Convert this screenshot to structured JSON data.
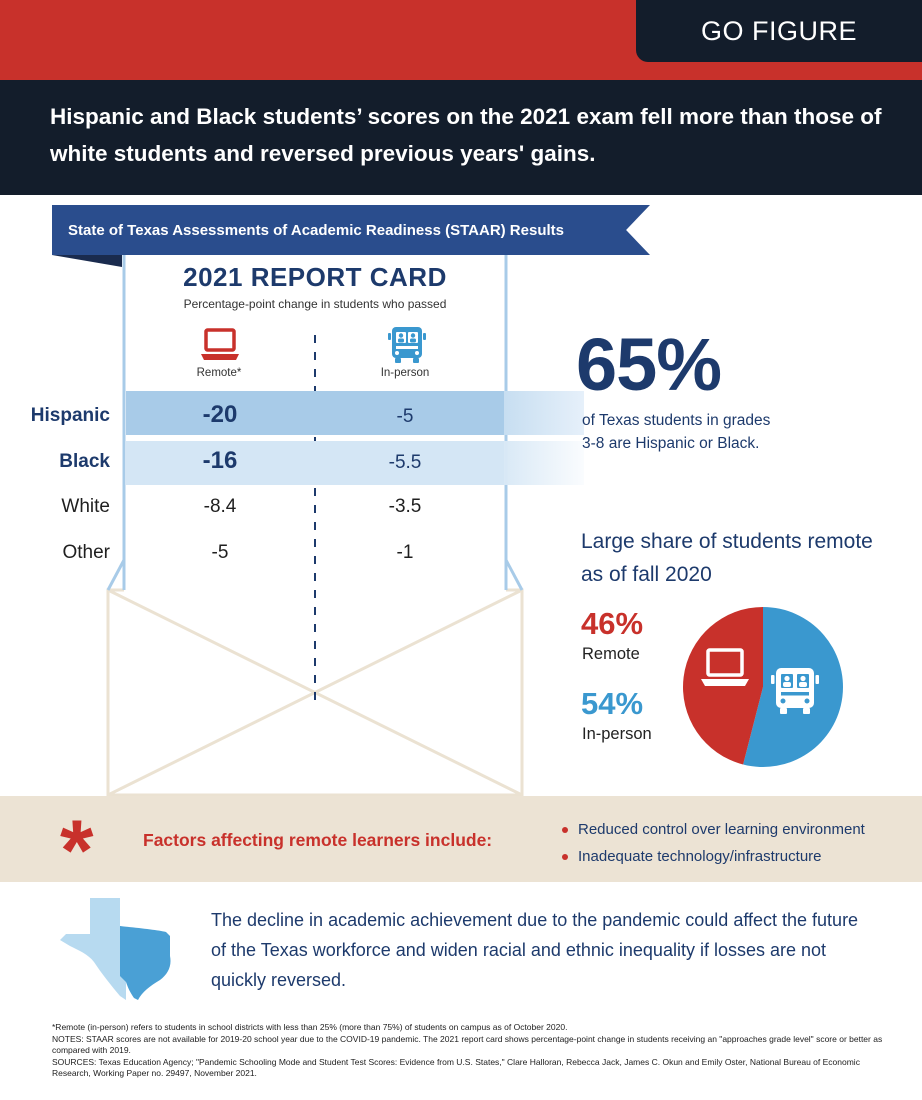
{
  "brand": "GO FIGURE",
  "headline": "Hispanic and Black students’ scores on the 2021 exam fell more than those of white students and reversed previous years' gains.",
  "ribbon": "State of Texas Assessments of Academic Readiness (STAAR) Results",
  "colors": {
    "red": "#c8312b",
    "navy": "#131d2b",
    "dark_blue": "#1d3a6c",
    "ribbon_blue": "#2a4d8d",
    "light_blue": "#3a98cf",
    "band_hispanic": "#a8cbe8",
    "band_black": "#d4e6f5",
    "beige": "#ece3d4"
  },
  "icons": [
    "laptop-icon",
    "school-bus-icon",
    "asterisk-icon",
    "texas-map-icon"
  ],
  "chart_data": [
    {
      "type": "table",
      "title": "2021 REPORT CARD",
      "subtitle": "Percentage-point change in students who passed",
      "columns": [
        "Remote*",
        "In-person"
      ],
      "rows": [
        {
          "name": "Hispanic",
          "remote": "-20",
          "inperson": "-5"
        },
        {
          "name": "Black",
          "remote": "-16",
          "inperson": "-5.5"
        },
        {
          "name": "White",
          "remote": "-8.4",
          "inperson": "-3.5"
        },
        {
          "name": "Other",
          "remote": "-5",
          "inperson": "-1"
        }
      ]
    },
    {
      "type": "pie",
      "title": "Large share of students remote as of fall 2020",
      "slices": [
        {
          "label": "Remote",
          "value": 46,
          "display": "46%",
          "color": "#c8312b"
        },
        {
          "label": "In-person",
          "value": 54,
          "display": "54%",
          "color": "#3a98cf"
        }
      ]
    }
  ],
  "highlight": {
    "value": "65%",
    "text": "of Texas students in grades 3-8 are Hispanic or Black."
  },
  "factors": {
    "title": "Factors affecting remote learners include:",
    "items": [
      "Reduced control over learning environment",
      "Inadequate technology/infrastructure"
    ]
  },
  "conclusion": "The decline in academic achievement due to the pandemic could affect the future of the Texas workforce and widen racial and ethnic inequality if losses are not quickly reversed.",
  "notes": {
    "footnote": "*Remote (in-person) refers to students in school districts with less than 25% (more than 75%) of students on campus as of October 2020.",
    "notes": "NOTES: STAAR scores are not available for 2019-20 school year due to the COVID-19 pandemic. The 2021 report card shows percentage-point change in students receiving an \"approaches grade level\" score or better as compared with 2019.",
    "sources": "SOURCES: Texas Education Agency; \"Pandemic Schooling Mode and Student Test Scores: Evidence from U.S. States,\" Clare Halloran, Rebecca Jack, James C. Okun and Emily Oster, National Bureau of Economic Research, Working Paper no. 29497,  November 2021."
  }
}
